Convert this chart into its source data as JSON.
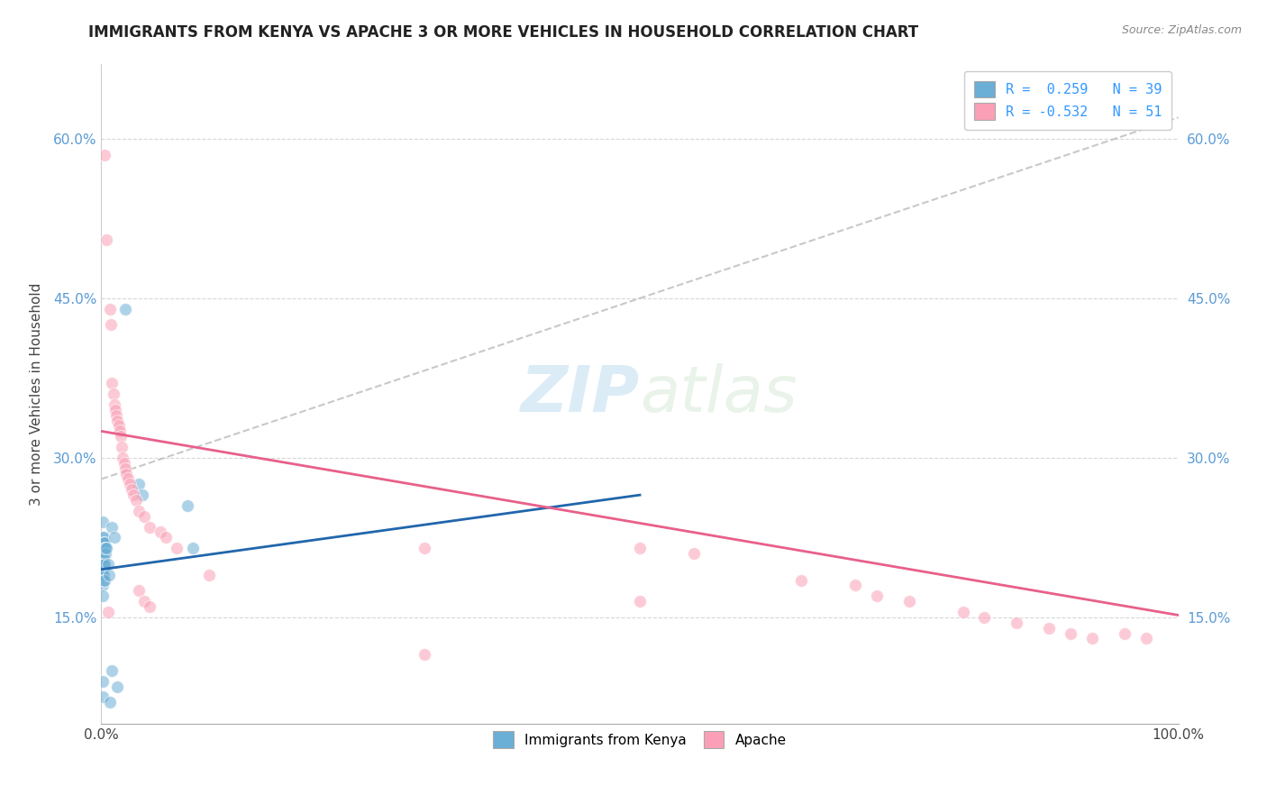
{
  "title": "IMMIGRANTS FROM KENYA VS APACHE 3 OR MORE VEHICLES IN HOUSEHOLD CORRELATION CHART",
  "source": "Source: ZipAtlas.com",
  "ylabel": "3 or more Vehicles in Household",
  "xmin": 0.0,
  "xmax": 1.0,
  "ymin": 0.05,
  "ymax": 0.67,
  "x_tick_labels": [
    "0.0%",
    "100.0%"
  ],
  "x_tick_positions": [
    0.0,
    1.0
  ],
  "x_minor_ticks": [
    0.1,
    0.2,
    0.3,
    0.4,
    0.5,
    0.6,
    0.7,
    0.8,
    0.9
  ],
  "y_tick_labels": [
    "15.0%",
    "30.0%",
    "45.0%",
    "60.0%"
  ],
  "y_tick_values": [
    0.15,
    0.3,
    0.45,
    0.6
  ],
  "legend_entries": [
    {
      "label": "R =  0.259   N = 39",
      "color": "#a8c8f0"
    },
    {
      "label": "R = -0.532   N = 51",
      "color": "#f8b8c8"
    }
  ],
  "legend_bottom": [
    {
      "label": "Immigrants from Kenya",
      "color": "#a8c8f0"
    },
    {
      "label": "Apache",
      "color": "#f8b8c8"
    }
  ],
  "watermark_zip": "ZIP",
  "watermark_atlas": "atlas",
  "blue_scatter": [
    [
      0.001,
      0.225
    ],
    [
      0.001,
      0.215
    ],
    [
      0.001,
      0.22
    ],
    [
      0.001,
      0.205
    ],
    [
      0.001,
      0.195
    ],
    [
      0.001,
      0.24
    ],
    [
      0.001,
      0.19
    ],
    [
      0.001,
      0.18
    ],
    [
      0.001,
      0.17
    ],
    [
      0.001,
      0.2
    ],
    [
      0.002,
      0.225
    ],
    [
      0.002,
      0.215
    ],
    [
      0.002,
      0.21
    ],
    [
      0.002,
      0.22
    ],
    [
      0.002,
      0.205
    ],
    [
      0.002,
      0.2
    ],
    [
      0.002,
      0.19
    ],
    [
      0.002,
      0.185
    ],
    [
      0.003,
      0.22
    ],
    [
      0.003,
      0.215
    ],
    [
      0.003,
      0.2
    ],
    [
      0.003,
      0.185
    ],
    [
      0.004,
      0.215
    ],
    [
      0.004,
      0.21
    ],
    [
      0.005,
      0.215
    ],
    [
      0.006,
      0.2
    ],
    [
      0.007,
      0.19
    ],
    [
      0.01,
      0.235
    ],
    [
      0.012,
      0.225
    ],
    [
      0.022,
      0.44
    ],
    [
      0.035,
      0.275
    ],
    [
      0.038,
      0.265
    ],
    [
      0.08,
      0.255
    ],
    [
      0.085,
      0.215
    ],
    [
      0.001,
      0.09
    ],
    [
      0.01,
      0.1
    ],
    [
      0.001,
      0.075
    ],
    [
      0.008,
      0.07
    ],
    [
      0.015,
      0.085
    ]
  ],
  "pink_scatter": [
    [
      0.003,
      0.585
    ],
    [
      0.005,
      0.505
    ],
    [
      0.008,
      0.44
    ],
    [
      0.009,
      0.425
    ],
    [
      0.01,
      0.37
    ],
    [
      0.011,
      0.36
    ],
    [
      0.012,
      0.35
    ],
    [
      0.013,
      0.345
    ],
    [
      0.014,
      0.34
    ],
    [
      0.015,
      0.335
    ],
    [
      0.016,
      0.33
    ],
    [
      0.017,
      0.325
    ],
    [
      0.018,
      0.32
    ],
    [
      0.019,
      0.31
    ],
    [
      0.02,
      0.3
    ],
    [
      0.021,
      0.295
    ],
    [
      0.022,
      0.29
    ],
    [
      0.023,
      0.285
    ],
    [
      0.025,
      0.28
    ],
    [
      0.026,
      0.275
    ],
    [
      0.028,
      0.27
    ],
    [
      0.03,
      0.265
    ],
    [
      0.032,
      0.26
    ],
    [
      0.035,
      0.25
    ],
    [
      0.04,
      0.245
    ],
    [
      0.045,
      0.235
    ],
    [
      0.055,
      0.23
    ],
    [
      0.06,
      0.225
    ],
    [
      0.07,
      0.215
    ],
    [
      0.1,
      0.19
    ],
    [
      0.3,
      0.215
    ],
    [
      0.5,
      0.215
    ],
    [
      0.55,
      0.21
    ],
    [
      0.65,
      0.185
    ],
    [
      0.7,
      0.18
    ],
    [
      0.72,
      0.17
    ],
    [
      0.75,
      0.165
    ],
    [
      0.8,
      0.155
    ],
    [
      0.82,
      0.15
    ],
    [
      0.85,
      0.145
    ],
    [
      0.88,
      0.14
    ],
    [
      0.9,
      0.135
    ],
    [
      0.92,
      0.13
    ],
    [
      0.95,
      0.135
    ],
    [
      0.97,
      0.13
    ],
    [
      0.3,
      0.115
    ],
    [
      0.035,
      0.175
    ],
    [
      0.04,
      0.165
    ],
    [
      0.045,
      0.16
    ],
    [
      0.5,
      0.165
    ],
    [
      0.006,
      0.155
    ]
  ],
  "blue_line": {
    "x0": 0.0,
    "y0": 0.195,
    "x1": 0.5,
    "y1": 0.265
  },
  "pink_line": {
    "x0": 0.0,
    "y0": 0.325,
    "x1": 1.0,
    "y1": 0.152
  },
  "gray_dashed_line": {
    "x0": 0.0,
    "y0": 0.28,
    "x1": 1.0,
    "y1": 0.62
  },
  "background_color": "#ffffff",
  "grid_color": "#cccccc",
  "scatter_alpha": 0.55,
  "scatter_size": 100,
  "blue_color": "#6baed6",
  "pink_color": "#fa9fb5",
  "blue_line_color": "#2166ac",
  "pink_line_color": "#e8608a",
  "gray_dash_color": "#bbbbbb"
}
